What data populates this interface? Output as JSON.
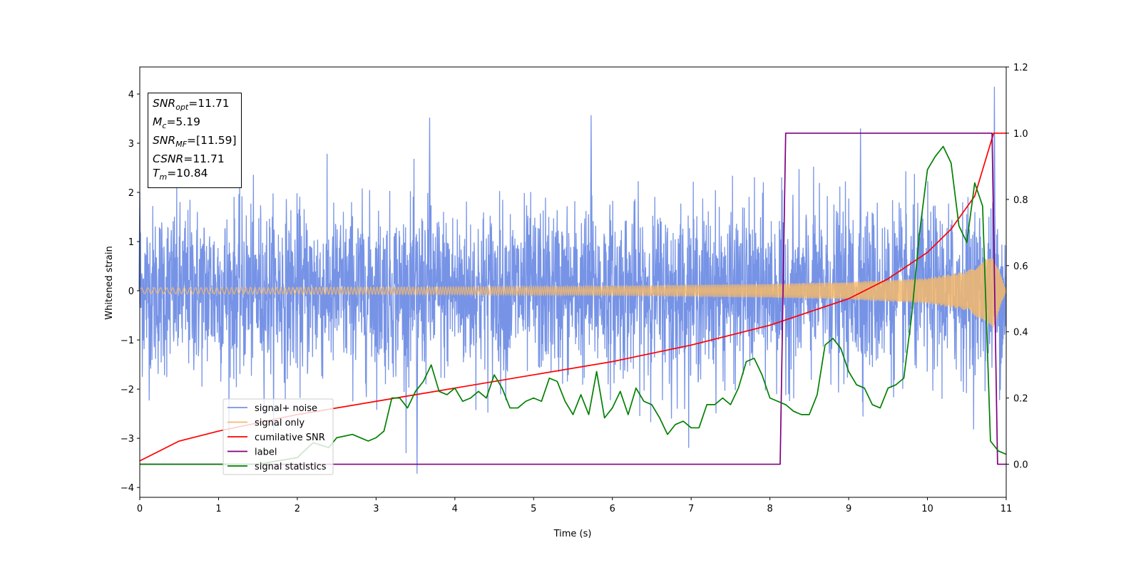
{
  "chart_data": {
    "type": "line",
    "xlabel": "Time (s)",
    "ylabel": "Whitened strain",
    "xlim": [
      0,
      11
    ],
    "ylim_left": [
      -4.2,
      4.55
    ],
    "ylim_right": [
      -0.1,
      1.2
    ],
    "x_ticks": [
      "0",
      "1",
      "2",
      "3",
      "4",
      "5",
      "6",
      "7",
      "8",
      "9",
      "10",
      "11"
    ],
    "y_ticks_left": [
      "−4",
      "−3",
      "−2",
      "−1",
      "0",
      "1",
      "2",
      "3",
      "4"
    ],
    "y_ticks_right": [
      "0.0",
      "0.2",
      "0.4",
      "0.6",
      "0.8",
      "1.0",
      "1.2"
    ],
    "grid": false,
    "legend_position": "lower-left",
    "annotations": {
      "snr_opt": {
        "label": "SNR",
        "sub": "opt",
        "value": "=11.71"
      },
      "mc": {
        "label": "M",
        "sub": "c",
        "value": "=5.19"
      },
      "snr_mf": {
        "label": "SNR",
        "sub": "MF",
        "value": "=[11.59]"
      },
      "csnr": {
        "label": "CSNR",
        "value": "=11.71"
      },
      "tm": {
        "label": "T",
        "sub": "m",
        "value": "=10.84"
      }
    },
    "series": [
      {
        "name": "signal+ noise",
        "axis": "left",
        "color": "#7693e6",
        "description_values": {
          "noise_std": 0.85,
          "max_spike": 4.15,
          "min_spike": -3.72
        }
      },
      {
        "name": "signal only",
        "axis": "left",
        "color": "#f5b96b",
        "envelope": {
          "x": [
            0,
            2,
            4,
            6,
            8,
            9,
            10,
            10.5,
            10.84,
            11
          ],
          "amp": [
            0.06,
            0.07,
            0.08,
            0.1,
            0.14,
            0.18,
            0.26,
            0.4,
            0.75,
            0
          ]
        }
      },
      {
        "name": "cumilative SNR",
        "axis": "right",
        "color": "#ff0000",
        "x": [
          0,
          0.5,
          1,
          2,
          3,
          4,
          5,
          6,
          7,
          8,
          8.5,
          9,
          9.5,
          10,
          10.3,
          10.6,
          10.84,
          11
        ],
        "y": [
          0.01,
          0.07,
          0.1,
          0.15,
          0.19,
          0.23,
          0.27,
          0.31,
          0.36,
          0.42,
          0.46,
          0.5,
          0.56,
          0.64,
          0.71,
          0.81,
          1.0,
          1.0
        ]
      },
      {
        "name": "label",
        "axis": "right",
        "color": "#800080",
        "x": [
          0,
          8.13,
          8.2,
          10.82,
          10.89,
          11
        ],
        "y": [
          0,
          0,
          1,
          1,
          0,
          0
        ]
      },
      {
        "name": "signal statistics",
        "axis": "right",
        "color": "#008000",
        "x": [
          0,
          0.5,
          1,
          1.5,
          2,
          2.2,
          2.4,
          2.5,
          2.7,
          2.9,
          3.0,
          3.1,
          3.2,
          3.3,
          3.4,
          3.5,
          3.6,
          3.7,
          3.8,
          3.9,
          4.0,
          4.1,
          4.2,
          4.3,
          4.4,
          4.5,
          4.6,
          4.7,
          4.8,
          4.9,
          5.0,
          5.1,
          5.2,
          5.3,
          5.4,
          5.5,
          5.6,
          5.7,
          5.8,
          5.9,
          6.0,
          6.1,
          6.2,
          6.3,
          6.4,
          6.5,
          6.6,
          6.7,
          6.8,
          6.9,
          7.0,
          7.1,
          7.2,
          7.3,
          7.4,
          7.5,
          7.6,
          7.7,
          7.8,
          7.9,
          8.0,
          8.1,
          8.2,
          8.3,
          8.4,
          8.5,
          8.6,
          8.7,
          8.8,
          8.9,
          9.0,
          9.1,
          9.2,
          9.3,
          9.4,
          9.5,
          9.6,
          9.7,
          9.8,
          9.9,
          10.0,
          10.1,
          10.2,
          10.3,
          10.4,
          10.5,
          10.6,
          10.7,
          10.8,
          10.9,
          11.0
        ],
        "y": [
          0.0,
          0.0,
          0.0,
          0.0,
          0.02,
          0.065,
          0.05,
          0.08,
          0.09,
          0.07,
          0.08,
          0.1,
          0.2,
          0.2,
          0.17,
          0.22,
          0.25,
          0.3,
          0.22,
          0.21,
          0.23,
          0.19,
          0.2,
          0.22,
          0.2,
          0.27,
          0.23,
          0.17,
          0.17,
          0.19,
          0.2,
          0.19,
          0.26,
          0.25,
          0.19,
          0.15,
          0.21,
          0.15,
          0.28,
          0.14,
          0.17,
          0.22,
          0.15,
          0.23,
          0.19,
          0.18,
          0.14,
          0.09,
          0.12,
          0.13,
          0.11,
          0.11,
          0.18,
          0.18,
          0.2,
          0.18,
          0.23,
          0.31,
          0.32,
          0.27,
          0.2,
          0.19,
          0.18,
          0.16,
          0.15,
          0.15,
          0.21,
          0.36,
          0.38,
          0.35,
          0.28,
          0.24,
          0.23,
          0.18,
          0.17,
          0.23,
          0.24,
          0.26,
          0.45,
          0.7,
          0.89,
          0.93,
          0.96,
          0.91,
          0.72,
          0.67,
          0.85,
          0.78,
          0.07,
          0.04,
          0.03
        ]
      }
    ]
  }
}
